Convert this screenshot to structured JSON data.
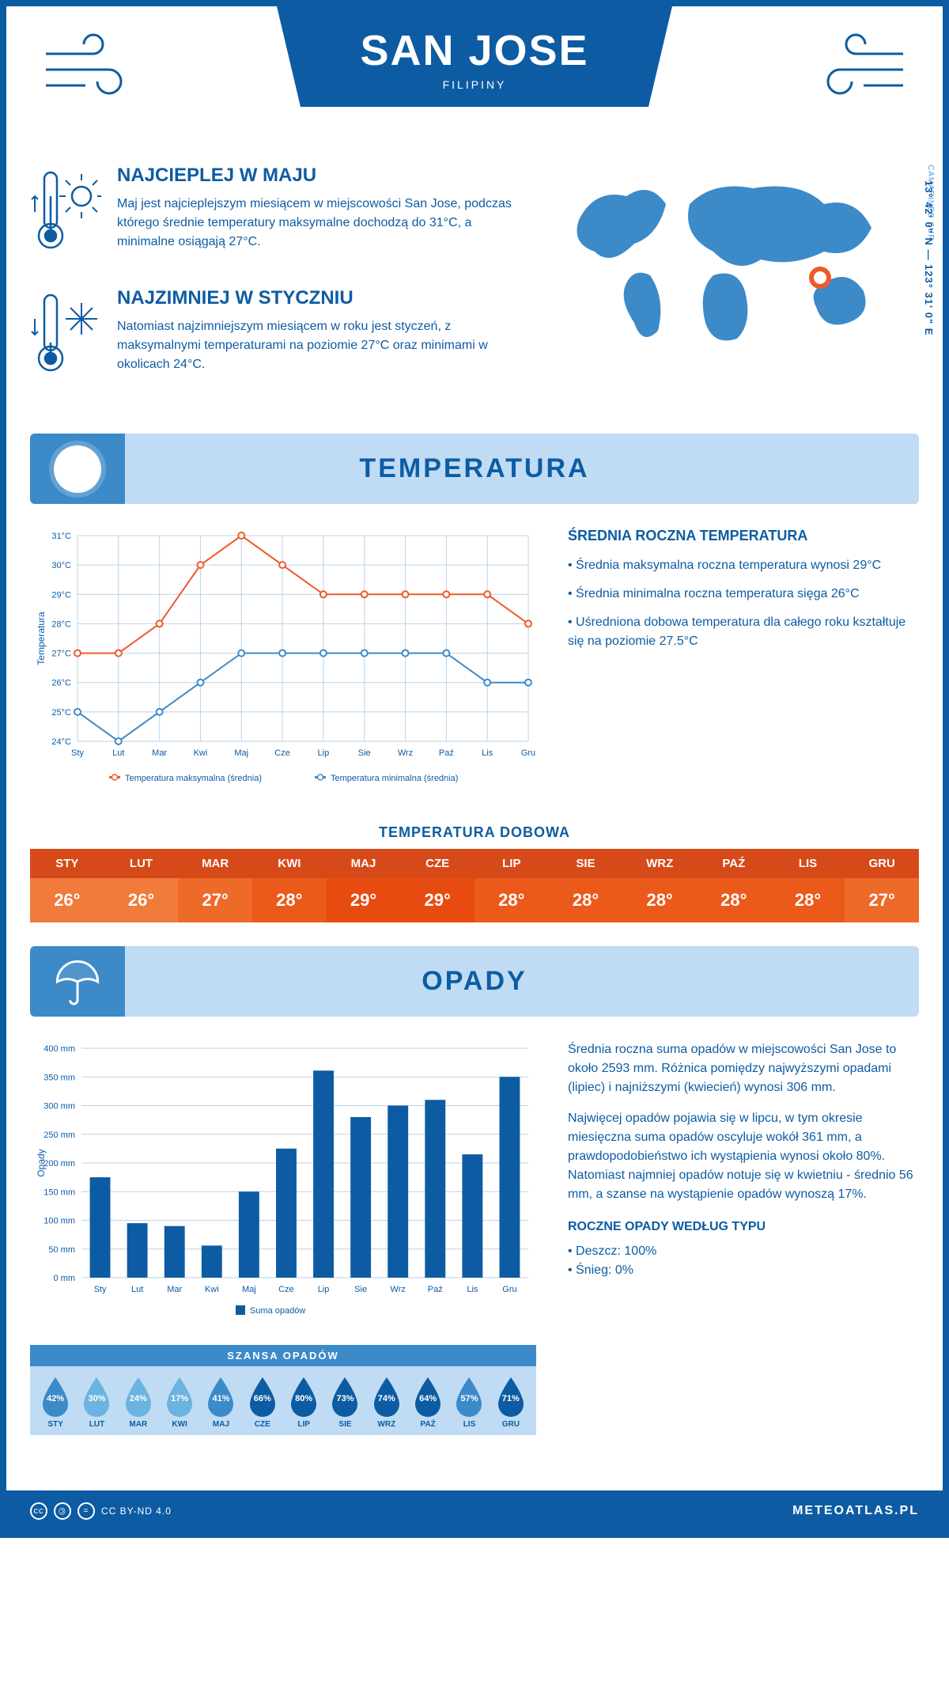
{
  "colors": {
    "primary": "#0d5ca3",
    "light_blue": "#bfdcf4",
    "mid_blue": "#3d8ac9",
    "sky_blue": "#6bb3e0",
    "orange_line": "#f05a28",
    "blue_line": "#3d8ac9",
    "grid": "#bcd3e6"
  },
  "header": {
    "city": "SAN JOSE",
    "country": "FILIPINY",
    "coords": "13° 42' 0\" N — 123° 31' 0\" E",
    "region": "CAMARINES SUR"
  },
  "warm": {
    "title": "NAJCIEPLEJ W MAJU",
    "text": "Maj jest najcieplejszym miesiącem w miejscowości San Jose, podczas którego średnie temperatury maksymalne dochodzą do 31°C, a minimalne osiągają 27°C."
  },
  "cold": {
    "title": "NAJZIMNIEJ W STYCZNIU",
    "text": "Natomiast najzimniejszym miesiącem w roku jest styczeń, z maksymalnymi temperaturami na poziomie 27°C oraz minimami w okolicach 24°C."
  },
  "temp_section": {
    "title": "TEMPERATURA"
  },
  "months": [
    "Sty",
    "Lut",
    "Mar",
    "Kwi",
    "Maj",
    "Cze",
    "Lip",
    "Sie",
    "Wrz",
    "Paź",
    "Lis",
    "Gru"
  ],
  "months_upper": [
    "STY",
    "LUT",
    "MAR",
    "KWI",
    "MAJ",
    "CZE",
    "LIP",
    "SIE",
    "WRZ",
    "PAŹ",
    "LIS",
    "GRU"
  ],
  "temp_chart": {
    "type": "line",
    "ylabel": "Temperatura",
    "ymin": 24,
    "ymax": 31,
    "ystep": 1,
    "max_series": {
      "label": "Temperatura maksymalna (średnia)",
      "color": "#f05a28",
      "values": [
        27,
        27,
        28,
        30,
        31,
        30,
        29,
        29,
        29,
        29,
        29,
        28
      ]
    },
    "min_series": {
      "label": "Temperatura minimalna (średnia)",
      "color": "#3d8ac9",
      "values": [
        25,
        24,
        25,
        26,
        27,
        27,
        27,
        27,
        27,
        27,
        26,
        26
      ]
    }
  },
  "avg_temp": {
    "title": "ŚREDNIA ROCZNA TEMPERATURA",
    "items": [
      "Średnia maksymalna roczna temperatura wynosi 29°C",
      "Średnia minimalna roczna temperatura sięga 26°C",
      "Uśredniona dobowa temperatura dla całego roku kształtuje się na poziomie 27.5°C"
    ]
  },
  "dobowa": {
    "title": "TEMPERATURA DOBOWA",
    "hdr_color": "#d64a1a",
    "values": [
      "26°",
      "26°",
      "27°",
      "28°",
      "29°",
      "29°",
      "28°",
      "28°",
      "28°",
      "28°",
      "28°",
      "27°"
    ],
    "colors": [
      "#f07b3a",
      "#f07b3a",
      "#ee6a28",
      "#eb5a1b",
      "#e84b10",
      "#e84b10",
      "#eb5a1b",
      "#eb5a1b",
      "#eb5a1b",
      "#eb5a1b",
      "#eb5a1b",
      "#ee6a28"
    ]
  },
  "precip_section": {
    "title": "OPADY"
  },
  "precip_chart": {
    "type": "bar",
    "ylabel": "Opady",
    "ymin": 0,
    "ymax": 400,
    "ystep": 50,
    "bar_color": "#0d5ca3",
    "legend": "Suma opadów",
    "values": [
      175,
      95,
      90,
      56,
      150,
      225,
      361,
      280,
      300,
      310,
      215,
      350
    ]
  },
  "precip_text": {
    "p1": "Średnia roczna suma opadów w miejscowości San Jose to około 2593 mm. Różnica pomiędzy najwyższymi opadami (lipiec) i najniższymi (kwiecień) wynosi 306 mm.",
    "p2": "Najwięcej opadów pojawia się w lipcu, w tym okresie miesięczna suma opadów oscyluje wokół 361 mm, a prawdopodobieństwo ich wystąpienia wynosi około 80%. Natomiast najmniej opadów notuje się w kwietniu - średnio 56 mm, a szanse na wystąpienie opadów wynoszą 17%."
  },
  "szansa": {
    "title": "SZANSA OPADÓW",
    "values": [
      42,
      30,
      24,
      17,
      41,
      66,
      80,
      73,
      74,
      64,
      57,
      71
    ]
  },
  "precip_type": {
    "title": "ROCZNE OPADY WEDŁUG TYPU",
    "items": [
      "Deszcz: 100%",
      "Śnieg: 0%"
    ]
  },
  "footer": {
    "license": "CC BY-ND 4.0",
    "site": "METEOATLAS.PL"
  }
}
